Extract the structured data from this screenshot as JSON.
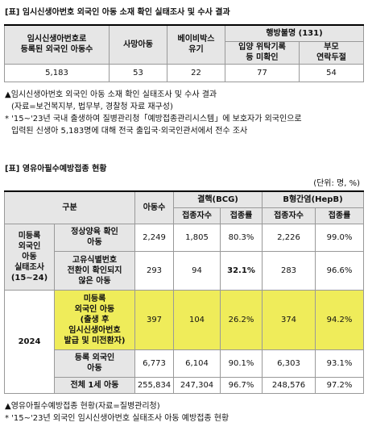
{
  "table1": {
    "title": "[표] 임시신생아번호 외국인 아동 소재 확인 실태조사 및 수사 결과",
    "columns": [
      [
        "임시신생아번호로",
        "등록된 외국인 아동수"
      ],
      [
        "사망아동"
      ],
      [
        "베이비박스",
        "유기"
      ]
    ],
    "missing_header": "행방불명 (131)",
    "missing_columns": [
      [
        "입양 위탁기록",
        "등 미확인"
      ],
      [
        "부모",
        "연락두절"
      ]
    ],
    "row": [
      "5,183",
      "53",
      "22",
      "77",
      "54"
    ]
  },
  "notes1": [
    "▲임시신생아번호 외국인 아동 소재 확인 실태조사 및 수사 결과",
    "(자료=보건복지부, 법무부, 경찰청 자료 재구성)",
    "* '15~'23년 국내 출생하여 질병관리청「예방접종관리시스템」에 보호자가 외국인으로",
    "입력된 신생아 5,183명에 대해 전국 출입국·외국인관서에서 전수 조사"
  ],
  "table2": {
    "title": "[표] 영유아필수예방접종 현황",
    "unit": "(단위: 명, %)",
    "header": {
      "group": "구분",
      "count": "아동수",
      "bcg": "결핵(BCG)",
      "hepb": "B형간염(HepB)",
      "sub": [
        "접종자수",
        "접종률",
        "접종자수",
        "접종률"
      ]
    },
    "groups": [
      {
        "label": [
          "미등록",
          "외국인",
          "아동",
          "실태조사",
          "(15~24)"
        ],
        "rows": [
          {
            "label": [
              "정상양육 확인",
              "아동"
            ],
            "values": [
              "2,249",
              "1,805",
              "80.3%",
              "2,226",
              "99.0%"
            ]
          },
          {
            "label": [
              "고유식별번호",
              "전환이 확인되지",
              "않은 아동"
            ],
            "values": [
              "293",
              "94",
              "32.1%",
              "283",
              "96.6%"
            ]
          }
        ]
      },
      {
        "label": [
          "2024"
        ],
        "rows": [
          {
            "label": [
              "미등록",
              "외국인 아동",
              "(출생 후",
              "임시신생아번호",
              "발급 및 미전환자)"
            ],
            "values": [
              "397",
              "104",
              "26.2%",
              "374",
              "94.2%"
            ]
          },
          {
            "label": [
              "등록 외국인",
              "아동"
            ],
            "values": [
              "6,773",
              "6,104",
              "90.1%",
              "6,303",
              "93.1%"
            ]
          },
          {
            "label": [
              "전체 1세 아동"
            ],
            "values": [
              "255,834",
              "247,304",
              "96.7%",
              "248,576",
              "97.2%"
            ]
          }
        ]
      }
    ]
  },
  "notes2": [
    "▲영유아필수예방접종 현황(자료=질병관리청)",
    "* '15~'23년 외국인 임시신생아번호 실태조사 아동 예방접종 현황"
  ]
}
